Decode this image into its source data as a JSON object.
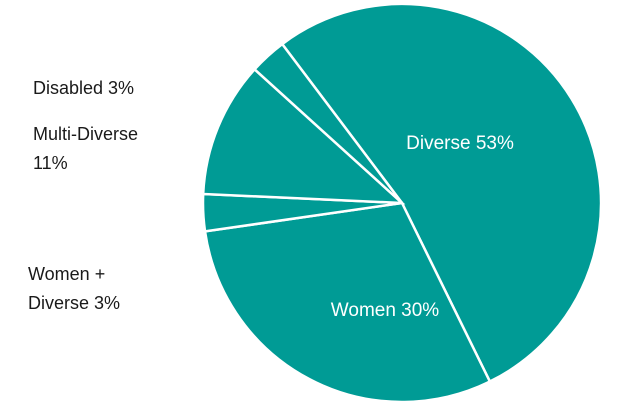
{
  "chart_data": {
    "type": "pie",
    "title": "",
    "slices": [
      {
        "label": "Diverse",
        "value": 53,
        "display": "Diverse 53%"
      },
      {
        "label": "Women",
        "value": 30,
        "display": "Women 30%"
      },
      {
        "label": "Women + Diverse",
        "value": 3,
        "display_lines": [
          "Women +",
          "Diverse 3%"
        ]
      },
      {
        "label": "Multi-Diverse",
        "value": 11,
        "display_lines": [
          "Multi-Diverse",
          "11%"
        ]
      },
      {
        "label": "Disabled",
        "value": 3,
        "display": "Disabled 3%"
      }
    ],
    "colors": {
      "slice_fill": "#009b95",
      "separator": "#ffffff"
    },
    "legend": "none"
  }
}
